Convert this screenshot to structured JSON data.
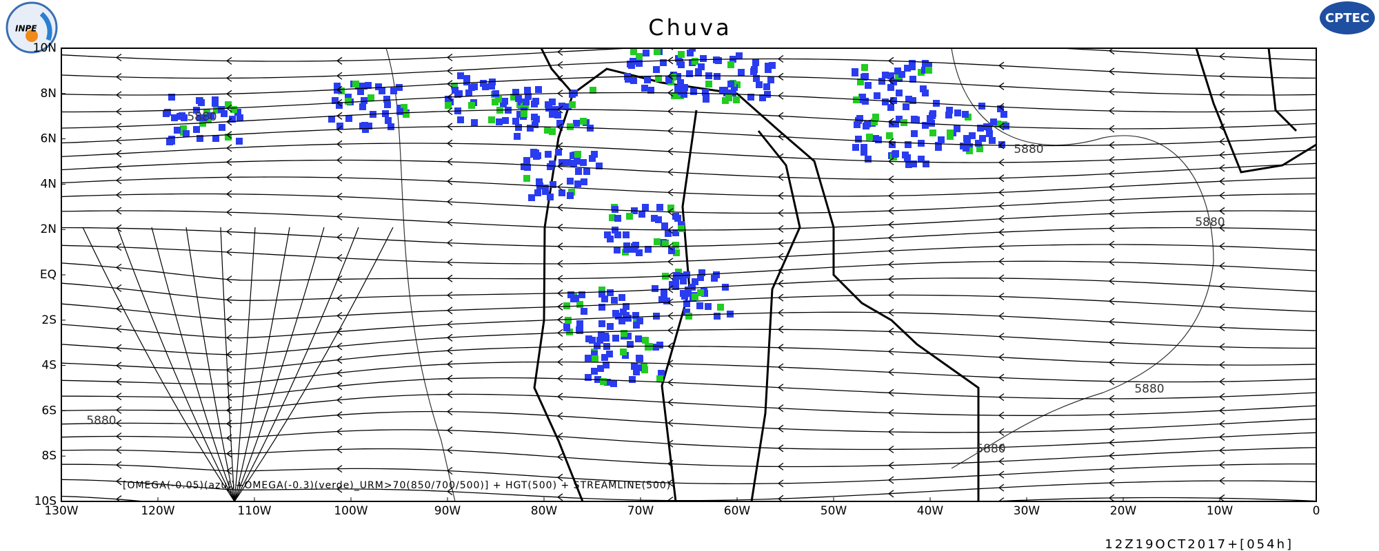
{
  "header": {
    "title": "Chuva",
    "left_logo": "INPE",
    "right_logo": "CPTEC"
  },
  "map": {
    "lat_labels": [
      "10N",
      "8N",
      "6N",
      "4N",
      "2N",
      "EQ",
      "2S",
      "4S",
      "6S",
      "8S",
      "10S"
    ],
    "lon_labels": [
      "130W",
      "120W",
      "110W",
      "100W",
      "90W",
      "80W",
      "70W",
      "60W",
      "50W",
      "40W",
      "30W",
      "20W",
      "10W",
      "0"
    ],
    "contour_labels": [
      "5880",
      "5880",
      "5880",
      "5880",
      "5880",
      "5880"
    ],
    "caption": "[OMEGA(-0.05)(azul)+OMEGA(-0.3)(verde)_URM>70(850/700/500)] + HGT(500) + STREAMLINE(500)",
    "timestamp": "12Z19OCT2017+[054h]"
  }
}
